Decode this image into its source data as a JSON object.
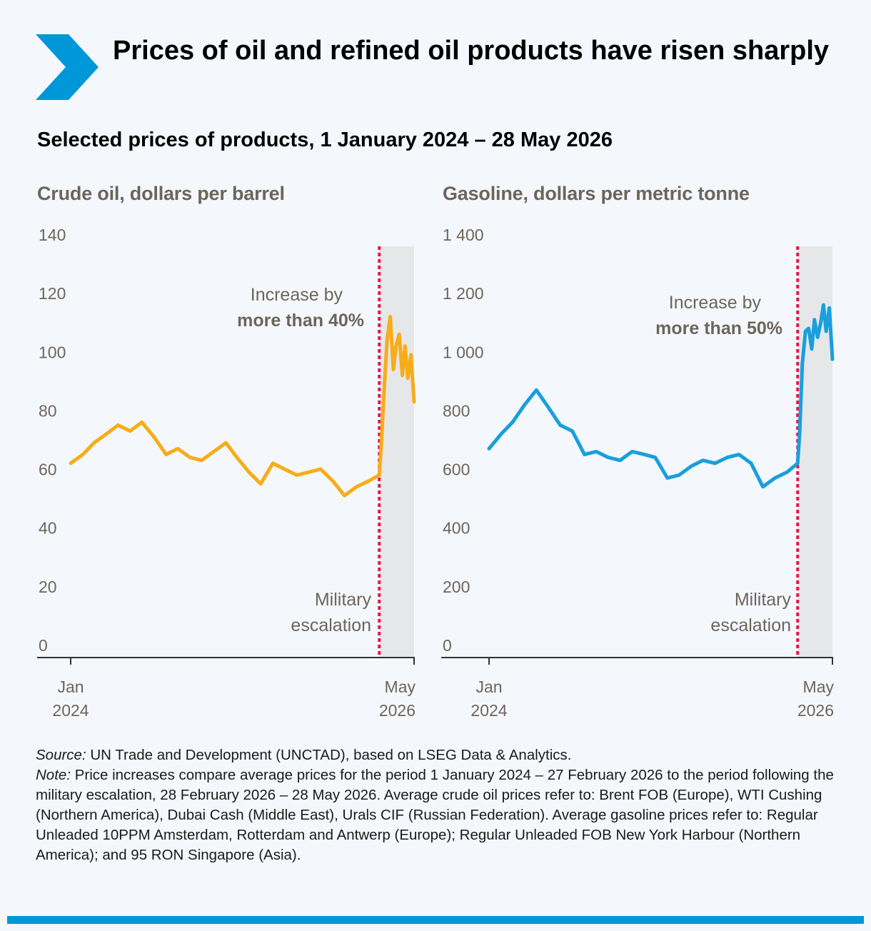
{
  "header": {
    "title": "Prices of oil and refined oil products have risen sharply",
    "subtitle": "Selected prices of products, 1 January 2024 – 28 May 2026"
  },
  "colors": {
    "crude": "#f7ac19",
    "gasoline": "#1a9fdc",
    "marker": "#e2184f",
    "shade": "#e6e7e9",
    "accent": "#0097d8"
  },
  "chart_data": [
    {
      "type": "line",
      "title": "Crude oil, dollars per barrel",
      "ylim": [
        0,
        140
      ],
      "y_ticks": [
        "0",
        "20",
        "40",
        "60",
        "80",
        "100",
        "120",
        "140"
      ],
      "x_tick_labels": [
        {
          "month": "Jan",
          "year": "2024"
        },
        {
          "month": "May",
          "year": "2026"
        }
      ],
      "xlim": [
        "2024-01-01",
        "2026-05-28"
      ],
      "event": {
        "date": "2026-02-28",
        "label_line1": "Military",
        "label_line2": "escalation"
      },
      "annotation": {
        "line1": "Increase by",
        "line2": "more than 40%"
      },
      "series": [
        {
          "x": [
            "2024-01-01",
            "2024-02-01",
            "2024-03-01",
            "2024-04-01",
            "2024-05-01",
            "2024-06-01",
            "2024-07-01",
            "2024-08-01",
            "2024-09-01",
            "2024-10-01",
            "2024-11-01",
            "2024-12-01",
            "2025-01-01",
            "2025-02-01",
            "2025-03-01",
            "2025-04-01",
            "2025-05-01",
            "2025-06-01",
            "2025-07-01",
            "2025-08-01",
            "2025-09-01",
            "2025-10-01",
            "2025-11-01",
            "2025-12-01",
            "2026-01-01",
            "2026-02-01",
            "2026-02-28",
            "2026-03-05",
            "2026-03-12",
            "2026-03-20",
            "2026-03-28",
            "2026-04-05",
            "2026-04-12",
            "2026-04-20",
            "2026-04-28",
            "2026-05-05",
            "2026-05-12",
            "2026-05-20",
            "2026-05-28"
          ],
          "values": [
            66,
            69,
            73,
            76,
            79,
            77,
            80,
            75,
            69,
            71,
            68,
            67,
            70,
            73,
            68,
            63,
            59,
            66,
            64,
            62,
            63,
            64,
            60,
            55,
            58,
            60,
            62,
            72,
            90,
            108,
            116,
            98,
            106,
            110,
            96,
            106,
            95,
            103,
            87
          ]
        }
      ]
    },
    {
      "type": "line",
      "title": "Gasoline, dollars per metric tonne",
      "ylim": [
        0,
        1400
      ],
      "y_ticks": [
        "0",
        "200",
        "400",
        "600",
        "800",
        "1 000",
        "1 200",
        "1 400"
      ],
      "x_tick_labels": [
        {
          "month": "Jan",
          "year": "2024"
        },
        {
          "month": "May",
          "year": "2026"
        }
      ],
      "xlim": [
        "2024-01-01",
        "2026-05-28"
      ],
      "event": {
        "date": "2026-02-28",
        "label_line1": "Military",
        "label_line2": "escalation"
      },
      "annotation": {
        "line1": "Increase by",
        "line2": "more than 50%"
      },
      "series": [
        {
          "x": [
            "2024-01-01",
            "2024-02-01",
            "2024-03-01",
            "2024-04-01",
            "2024-05-01",
            "2024-06-01",
            "2024-07-01",
            "2024-08-01",
            "2024-09-01",
            "2024-10-01",
            "2024-11-01",
            "2024-12-01",
            "2025-01-01",
            "2025-02-01",
            "2025-03-01",
            "2025-04-01",
            "2025-05-01",
            "2025-06-01",
            "2025-07-01",
            "2025-08-01",
            "2025-09-01",
            "2025-10-01",
            "2025-11-01",
            "2025-12-01",
            "2026-01-01",
            "2026-02-01",
            "2026-02-28",
            "2026-03-05",
            "2026-03-12",
            "2026-03-20",
            "2026-03-28",
            "2026-04-05",
            "2026-04-12",
            "2026-04-20",
            "2026-04-28",
            "2026-05-05",
            "2026-05-12",
            "2026-05-20",
            "2026-05-28"
          ],
          "values": [
            710,
            760,
            800,
            860,
            910,
            850,
            790,
            770,
            690,
            700,
            680,
            670,
            700,
            690,
            680,
            610,
            620,
            650,
            670,
            660,
            680,
            690,
            660,
            580,
            610,
            630,
            660,
            760,
            1000,
            1110,
            1120,
            1050,
            1150,
            1090,
            1140,
            1200,
            1110,
            1190,
            1015
          ]
        }
      ]
    }
  ],
  "footer": {
    "source_label": "Source:",
    "source_text": " UN Trade and Development (UNCTAD), based on LSEG Data & Analytics.",
    "note_label": "Note:",
    "note_text": " Price increases compare average prices for the period 1 January 2024 – 27 February 2026 to the period following the military escalation, 28 February 2026 – 28 May 2026. Average crude oil prices refer to: Brent FOB (Europe), WTI Cushing (Northern America), Dubai Cash (Middle East), Urals CIF (Russian Federation). Average gasoline prices refer to: Regular Unleaded 10PPM Amsterdam, Rotterdam and Antwerp (Europe); Regular Unleaded FOB New York Harbour (Northern America); and 95 RON Singapore (Asia)."
  }
}
